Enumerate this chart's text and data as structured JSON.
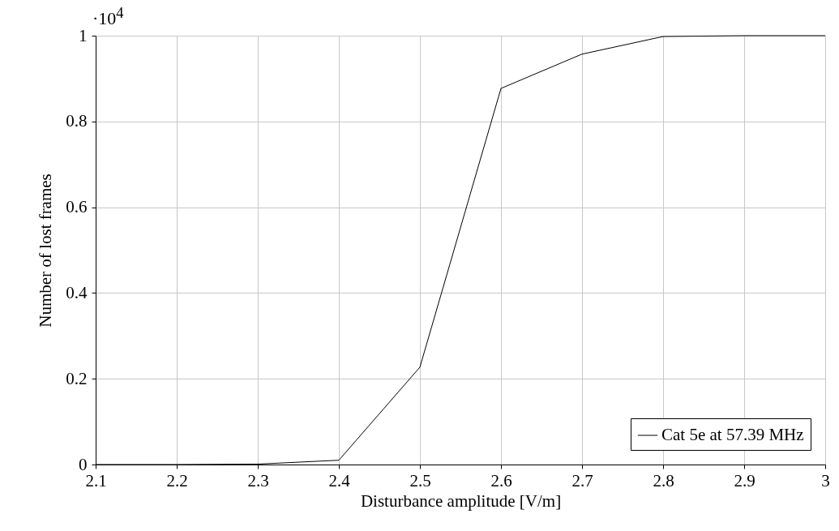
{
  "chart_data": {
    "type": "line",
    "xlabel": "Disturbance amplitude [V/m]",
    "ylabel": "Number of lost frames",
    "annotations": [
      "·10$^{4}$"
    ],
    "x": [
      2.1,
      2.2,
      2.3,
      2.4,
      2.5,
      2.6,
      2.7,
      2.8,
      2.9,
      3.0
    ],
    "series": [
      {
        "name": "Cat 5e at 57.39 MHz",
        "color": "#000000",
        "values": [
          0,
          0,
          0.001,
          0.01,
          0.227,
          0.877,
          0.957,
          0.998,
          1,
          1
        ]
      }
    ],
    "xlim": [
      2.1,
      3.0
    ],
    "xticks": [
      2.1,
      2.2,
      2.3,
      2.4,
      2.5,
      2.6,
      2.7,
      2.8,
      2.9,
      3
    ],
    "ylim": [
      0,
      1
    ],
    "yticks": [
      0,
      0.2,
      0.4,
      0.6,
      0.8,
      1
    ],
    "grid": true,
    "legend": "bottom right",
    "marker": "none",
    "line_style": "solid"
  }
}
